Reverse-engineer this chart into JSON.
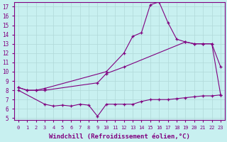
{
  "bg_color": "#c8f0f0",
  "line_color": "#800080",
  "grid_color": "#b0d8d8",
  "xlabel": "Windchill (Refroidissement éolien,°C)",
  "xlabel_fontsize": 6.5,
  "xticks": [
    0,
    1,
    2,
    3,
    4,
    5,
    6,
    7,
    8,
    9,
    10,
    11,
    12,
    13,
    14,
    15,
    16,
    17,
    18,
    19,
    20,
    21,
    22,
    23
  ],
  "yticks": [
    5,
    6,
    7,
    8,
    9,
    10,
    11,
    12,
    13,
    14,
    15,
    16,
    17
  ],
  "xlim": [
    -0.5,
    23.5
  ],
  "ylim": [
    4.8,
    17.5
  ],
  "series": [
    {
      "x": [
        0,
        1,
        2,
        3,
        10,
        12,
        13,
        14,
        15,
        16,
        17,
        18,
        19,
        20,
        21,
        22,
        23
      ],
      "y": [
        8.3,
        8.0,
        8.0,
        8.2,
        10.0,
        12.0,
        13.8,
        14.2,
        17.2,
        17.5,
        15.3,
        13.5,
        13.2,
        13.0,
        13.0,
        13.0,
        10.5
      ]
    },
    {
      "x": [
        0,
        1,
        2,
        3,
        9,
        10,
        12,
        19,
        20,
        21,
        22,
        23
      ],
      "y": [
        8.3,
        8.0,
        8.0,
        8.0,
        8.8,
        9.8,
        10.5,
        13.2,
        13.0,
        13.0,
        13.0,
        7.5
      ]
    },
    {
      "x": [
        0,
        3,
        4,
        5,
        6,
        7,
        8,
        9,
        10,
        11,
        12,
        13,
        14,
        15,
        16,
        17,
        18,
        19,
        20,
        21,
        22,
        23
      ],
      "y": [
        8.0,
        6.5,
        6.3,
        6.4,
        6.3,
        6.5,
        6.4,
        5.2,
        6.5,
        6.5,
        6.5,
        6.5,
        6.8,
        7.0,
        7.0,
        7.0,
        7.1,
        7.2,
        7.3,
        7.4,
        7.4,
        7.5
      ]
    }
  ]
}
